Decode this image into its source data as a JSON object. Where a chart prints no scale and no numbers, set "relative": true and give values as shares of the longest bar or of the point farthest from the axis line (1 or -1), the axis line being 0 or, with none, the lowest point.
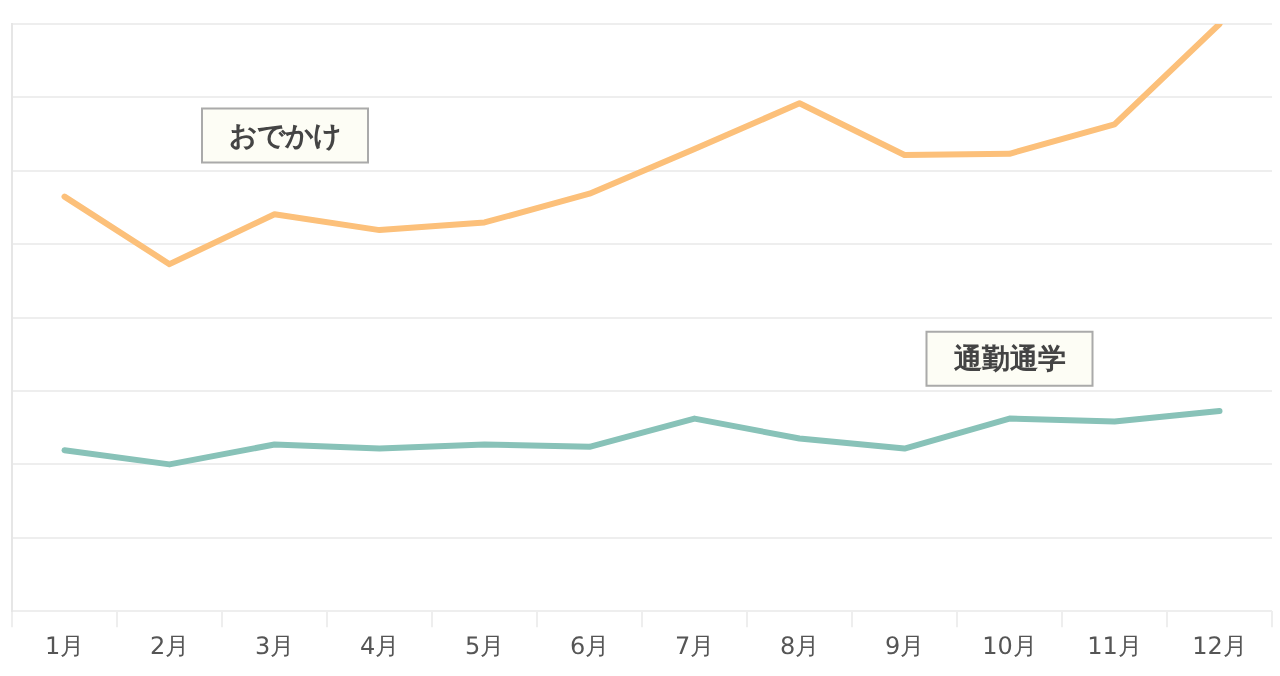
{
  "chart_data": {
    "type": "line",
    "relative": true,
    "grid": "y",
    "legend": false,
    "marker": "none",
    "line_style": "solid",
    "categories": [
      "1月",
      "2月",
      "3月",
      "4月",
      "5月",
      "6月",
      "7月",
      "8月",
      "9月",
      "10月",
      "11月",
      "12月"
    ],
    "series": [
      {
        "name": "おでかけ",
        "color": "#fcc07a",
        "values": [
          0.706,
          0.591,
          0.676,
          0.649,
          0.662,
          0.711,
          0.787,
          0.865,
          0.777,
          0.779,
          0.829,
          1
        ]
      },
      {
        "name": "通勤通学",
        "color": "#88c2b8",
        "values": [
          0.274,
          0.25,
          0.284,
          0.277,
          0.284,
          0.28,
          0.328,
          0.294,
          0.277,
          0.328,
          0.323,
          0.341
        ]
      }
    ]
  }
}
